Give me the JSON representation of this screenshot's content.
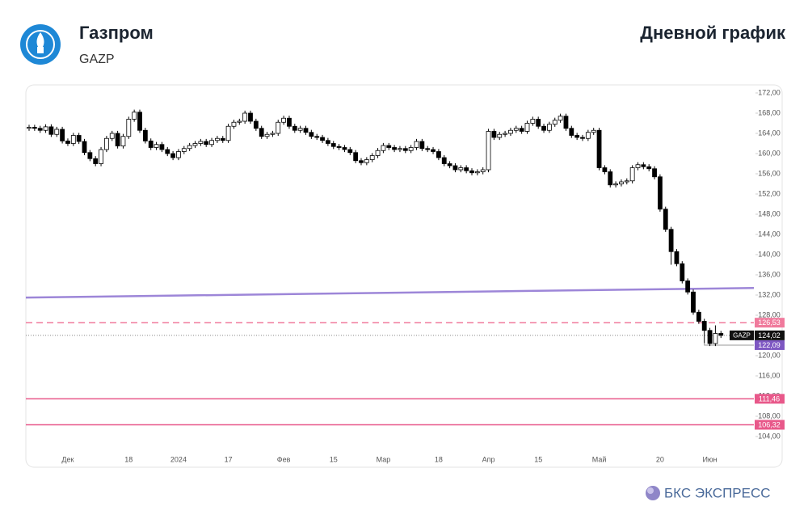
{
  "header": {
    "company": "Газпром",
    "ticker": "GAZP",
    "title": "Дневной график"
  },
  "footer": {
    "brand": "БКС ЭКСПРЕСС"
  },
  "chart_data": {
    "type": "candlestick",
    "up_color": "#ffffff",
    "down_color": "#000000",
    "categories": [
      null,
      null,
      null,
      null,
      null,
      null,
      null,
      "Дек",
      null,
      null,
      null,
      null,
      null,
      null,
      null,
      null,
      null,
      null,
      "18",
      null,
      null,
      null,
      null,
      null,
      null,
      null,
      null,
      "2024",
      null,
      null,
      null,
      null,
      null,
      null,
      null,
      null,
      "17",
      null,
      null,
      null,
      null,
      null,
      null,
      null,
      null,
      null,
      "Фев",
      null,
      null,
      null,
      null,
      null,
      null,
      null,
      null,
      "15",
      null,
      null,
      null,
      null,
      null,
      null,
      null,
      null,
      "Мар",
      null,
      null,
      null,
      null,
      null,
      null,
      null,
      null,
      null,
      "18",
      null,
      null,
      null,
      null,
      null,
      null,
      null,
      null,
      "Апр",
      null,
      null,
      null,
      null,
      null,
      null,
      null,
      null,
      "15",
      null,
      null,
      null,
      null,
      null,
      null,
      null,
      null,
      null,
      null,
      "Май",
      null,
      null,
      null,
      null,
      null,
      null,
      null,
      null,
      null,
      null,
      "20",
      null,
      null,
      null,
      null,
      null,
      null,
      null,
      null,
      "Июн",
      null,
      null
    ],
    "ohlc": [
      [
        165.0,
        165.7,
        164.5,
        165.2
      ],
      [
        165.2,
        165.7,
        164.5,
        165.0
      ],
      [
        165.0,
        165.5,
        164.1,
        164.6
      ],
      [
        164.6,
        165.8,
        164.1,
        165.3
      ],
      [
        165.3,
        165.8,
        163.3,
        163.8
      ],
      [
        163.8,
        165.3,
        163.3,
        164.8
      ],
      [
        164.8,
        165.3,
        162.0,
        162.5
      ],
      [
        162.5,
        163.0,
        161.5,
        162.0
      ],
      [
        162.0,
        164.1,
        161.5,
        163.6
      ],
      [
        163.6,
        164.1,
        161.9,
        162.4
      ],
      [
        162.4,
        162.9,
        159.7,
        160.2
      ],
      [
        160.2,
        160.7,
        158.5,
        159.0
      ],
      [
        159.0,
        159.5,
        157.5,
        158.0
      ],
      [
        158.0,
        161.3,
        157.5,
        160.8
      ],
      [
        160.8,
        163.5,
        160.3,
        163.0
      ],
      [
        163.0,
        164.5,
        162.5,
        164.0
      ],
      [
        164.0,
        164.5,
        161.0,
        161.5
      ],
      [
        161.5,
        163.9,
        161.0,
        163.4
      ],
      [
        163.4,
        167.3,
        162.9,
        166.8
      ],
      [
        166.8,
        168.7,
        166.3,
        168.2
      ],
      [
        168.2,
        168.7,
        164.1,
        164.6
      ],
      [
        164.6,
        165.1,
        162.0,
        162.5
      ],
      [
        162.5,
        163.0,
        160.7,
        161.2
      ],
      [
        161.2,
        162.3,
        160.7,
        161.8
      ],
      [
        161.8,
        162.3,
        160.3,
        160.8
      ],
      [
        160.8,
        161.3,
        159.5,
        160.0
      ],
      [
        160.0,
        160.5,
        158.7,
        159.2
      ],
      [
        159.2,
        160.9,
        158.7,
        160.4
      ],
      [
        160.4,
        161.5,
        159.9,
        161.0
      ],
      [
        161.0,
        162.1,
        160.5,
        161.6
      ],
      [
        161.6,
        162.5,
        161.1,
        162.0
      ],
      [
        162.0,
        162.9,
        161.5,
        162.4
      ],
      [
        162.4,
        162.9,
        161.3,
        161.8
      ],
      [
        161.8,
        163.1,
        161.3,
        162.6
      ],
      [
        162.6,
        163.5,
        162.1,
        163.0
      ],
      [
        163.0,
        163.5,
        162.1,
        162.6
      ],
      [
        162.6,
        165.9,
        162.1,
        165.4
      ],
      [
        165.4,
        166.7,
        164.9,
        166.2
      ],
      [
        166.2,
        166.9,
        165.7,
        166.4
      ],
      [
        166.4,
        168.5,
        165.9,
        168.0
      ],
      [
        168.0,
        168.5,
        165.9,
        166.4
      ],
      [
        166.4,
        166.9,
        164.5,
        165.0
      ],
      [
        165.0,
        165.5,
        162.9,
        163.4
      ],
      [
        163.4,
        164.3,
        162.9,
        163.8
      ],
      [
        163.8,
        164.5,
        163.3,
        164.0
      ],
      [
        164.0,
        166.7,
        163.5,
        166.2
      ],
      [
        166.2,
        167.5,
        165.7,
        167.0
      ],
      [
        167.0,
        167.5,
        164.9,
        165.4
      ],
      [
        165.4,
        165.9,
        164.1,
        164.6
      ],
      [
        164.6,
        165.5,
        164.1,
        165.0
      ],
      [
        165.0,
        165.5,
        163.7,
        164.2
      ],
      [
        164.2,
        164.7,
        162.9,
        163.4
      ],
      [
        163.4,
        163.9,
        162.7,
        163.2
      ],
      [
        163.2,
        163.7,
        162.1,
        162.6
      ],
      [
        162.6,
        163.1,
        161.5,
        162.0
      ],
      [
        162.0,
        162.5,
        160.9,
        161.4
      ],
      [
        161.4,
        161.9,
        160.7,
        161.2
      ],
      [
        161.2,
        161.7,
        160.3,
        160.8
      ],
      [
        160.8,
        161.3,
        159.7,
        160.2
      ],
      [
        160.2,
        160.7,
        158.1,
        158.6
      ],
      [
        158.6,
        159.1,
        157.7,
        158.2
      ],
      [
        158.2,
        159.3,
        157.7,
        158.8
      ],
      [
        158.8,
        160.1,
        158.3,
        159.6
      ],
      [
        159.6,
        161.1,
        159.1,
        160.6
      ],
      [
        160.6,
        162.1,
        160.1,
        161.6
      ],
      [
        161.6,
        162.1,
        160.7,
        161.2
      ],
      [
        161.2,
        161.7,
        160.3,
        160.8
      ],
      [
        160.8,
        161.5,
        160.3,
        161.0
      ],
      [
        161.0,
        161.5,
        160.1,
        160.6
      ],
      [
        160.6,
        161.7,
        160.1,
        161.2
      ],
      [
        161.2,
        162.9,
        160.7,
        162.4
      ],
      [
        162.4,
        162.9,
        160.5,
        161.0
      ],
      [
        161.0,
        161.5,
        160.3,
        160.8
      ],
      [
        160.8,
        161.3,
        159.9,
        160.4
      ],
      [
        160.4,
        160.9,
        158.7,
        159.2
      ],
      [
        159.2,
        159.7,
        157.5,
        158.0
      ],
      [
        158.0,
        158.5,
        157.1,
        157.6
      ],
      [
        157.6,
        158.1,
        156.3,
        156.8
      ],
      [
        156.8,
        157.7,
        156.3,
        157.2
      ],
      [
        157.2,
        157.7,
        156.1,
        156.6
      ],
      [
        156.6,
        157.1,
        155.7,
        156.2
      ],
      [
        156.2,
        156.9,
        155.7,
        156.4
      ],
      [
        156.4,
        157.3,
        155.9,
        156.8
      ],
      [
        156.8,
        164.9,
        156.3,
        164.4
      ],
      [
        164.4,
        164.9,
        162.7,
        163.2
      ],
      [
        163.2,
        164.3,
        162.7,
        163.8
      ],
      [
        163.8,
        164.5,
        163.3,
        164.0
      ],
      [
        164.0,
        165.1,
        163.5,
        164.6
      ],
      [
        164.6,
        165.5,
        164.1,
        165.0
      ],
      [
        165.0,
        165.5,
        163.9,
        164.4
      ],
      [
        164.4,
        166.5,
        163.9,
        166.0
      ],
      [
        166.0,
        167.3,
        165.5,
        166.8
      ],
      [
        166.8,
        167.3,
        164.9,
        165.4
      ],
      [
        165.4,
        165.9,
        164.1,
        164.6
      ],
      [
        164.6,
        166.3,
        164.1,
        165.8
      ],
      [
        165.8,
        167.1,
        165.3,
        166.6
      ],
      [
        166.6,
        167.9,
        166.1,
        167.4
      ],
      [
        167.4,
        167.9,
        164.5,
        165.0
      ],
      [
        165.0,
        165.5,
        163.1,
        163.6
      ],
      [
        163.6,
        164.1,
        162.7,
        163.2
      ],
      [
        163.2,
        163.7,
        162.5,
        163.0
      ],
      [
        163.0,
        164.7,
        162.5,
        164.2
      ],
      [
        164.2,
        165.1,
        163.7,
        164.6
      ],
      [
        164.6,
        165.1,
        156.7,
        157.2
      ],
      [
        157.2,
        157.7,
        155.9,
        156.4
      ],
      [
        156.4,
        156.9,
        153.3,
        153.8
      ],
      [
        153.8,
        154.5,
        153.3,
        154.0
      ],
      [
        154.0,
        154.9,
        153.5,
        154.4
      ],
      [
        154.4,
        155.1,
        153.9,
        154.6
      ],
      [
        154.6,
        157.7,
        154.1,
        157.2
      ],
      [
        157.2,
        158.3,
        156.7,
        157.8
      ],
      [
        157.8,
        158.3,
        156.9,
        157.4
      ],
      [
        157.4,
        157.9,
        156.5,
        157.0
      ],
      [
        157.0,
        157.5,
        154.9,
        155.4
      ],
      [
        155.4,
        155.9,
        148.5,
        149.0
      ],
      [
        149.0,
        149.5,
        144.5,
        145.0
      ],
      [
        145.0,
        145.5,
        138.0,
        140.6
      ],
      [
        140.6,
        141.1,
        137.7,
        138.2
      ],
      [
        138.2,
        138.7,
        134.3,
        134.8
      ],
      [
        134.8,
        135.3,
        132.1,
        132.6
      ],
      [
        132.6,
        133.1,
        128.1,
        128.6
      ],
      [
        128.6,
        129.1,
        126.3,
        126.8
      ],
      [
        126.8,
        127.3,
        122.5,
        125.0
      ],
      [
        125.0,
        125.5,
        121.9,
        122.4
      ],
      [
        122.4,
        126.0,
        121.9,
        124.4
      ],
      [
        124.4,
        124.9,
        123.5,
        124.02
      ]
    ],
    "ylim": [
      98.08,
      173.6
    ],
    "yticks": [
      {
        "value": 104,
        "label": "104,00"
      },
      {
        "value": 108,
        "label": "108,00"
      },
      {
        "value": 112,
        "label": "112,00"
      },
      {
        "value": 116,
        "label": "116,00"
      },
      {
        "value": 120,
        "label": "120,00"
      },
      {
        "value": 124,
        "label": "124,00"
      },
      {
        "value": 128,
        "label": "128,00"
      },
      {
        "value": 132,
        "label": "132,00"
      },
      {
        "value": 136,
        "label": "136,00"
      },
      {
        "value": 140,
        "label": "140,00"
      },
      {
        "value": 144,
        "label": "144,00"
      },
      {
        "value": 148,
        "label": "148,00"
      },
      {
        "value": 152,
        "label": "152,00"
      },
      {
        "value": 156,
        "label": "156,00"
      },
      {
        "value": 160,
        "label": "160,00"
      },
      {
        "value": 164,
        "label": "164,00"
      },
      {
        "value": 168,
        "label": "168,00"
      },
      {
        "value": 172,
        "label": "172,00"
      }
    ],
    "trend_line": {
      "color": "#9d86d8",
      "values": [
        131.5,
        133.4
      ]
    },
    "levels": [
      {
        "value": 126.53,
        "label": "126,53",
        "color": "#f07a9c",
        "style": "dashed"
      },
      {
        "value": 122.09,
        "label": "122,09",
        "color": "#7e57c2",
        "style": "short"
      },
      {
        "value": 111.46,
        "label": "111,46",
        "color": "#e8588a",
        "style": "solid"
      },
      {
        "value": 106.32,
        "label": "106,32",
        "color": "#e8588a",
        "style": "solid"
      }
    ],
    "last_price": {
      "value": 124.02,
      "label": "124,02"
    }
  }
}
